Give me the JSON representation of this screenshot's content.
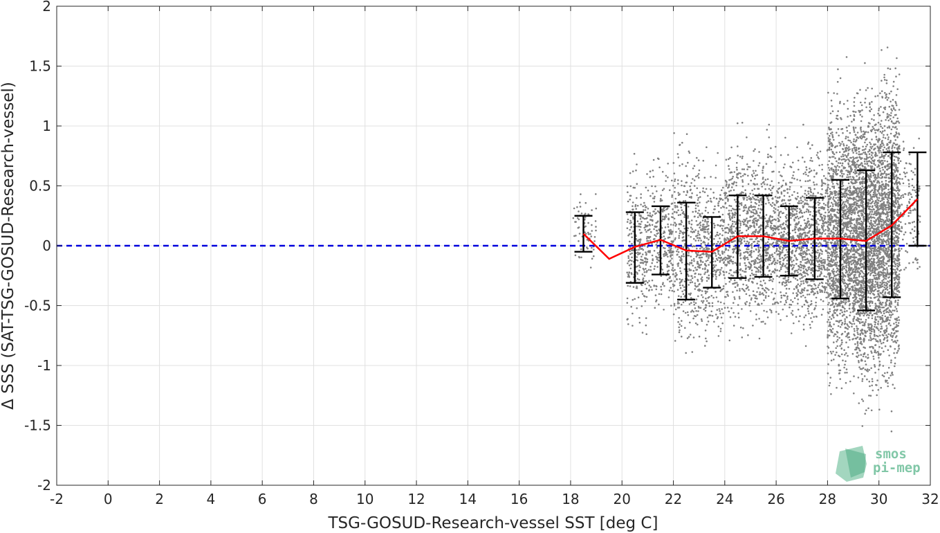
{
  "chart_data": {
    "type": "scatter",
    "title": "",
    "xlabel": "TSG-GOSUD-Research-vessel SST [deg C]",
    "ylabel": "Δ SSS (SAT-TSG-GOSUD-Research-vessel)",
    "xlim": [
      -2,
      32
    ],
    "ylim": [
      -2,
      2
    ],
    "xticks": [
      "-2",
      "0",
      "2",
      "4",
      "6",
      "8",
      "10",
      "12",
      "14",
      "16",
      "18",
      "20",
      "22",
      "24",
      "26",
      "28",
      "30",
      "32"
    ],
    "yticks": [
      "-2",
      "-1.5",
      "-1",
      "-0.5",
      "0",
      "0.5",
      "1",
      "1.5",
      "2"
    ],
    "xtick_values": [
      -2,
      0,
      2,
      4,
      6,
      8,
      10,
      12,
      14,
      16,
      18,
      20,
      22,
      24,
      26,
      28,
      30,
      32
    ],
    "ytick_values": [
      -2,
      -1.5,
      -1,
      -0.5,
      0,
      0.5,
      1,
      1.5,
      2
    ],
    "grid": true,
    "colors": {
      "scatter": "#808080",
      "mean_line": "#ff0000",
      "zero_line": "#0000dd",
      "errorbars": "#000000",
      "axes": "#262626",
      "grid": "#e0e0e0"
    },
    "scatter_clusters": [
      {
        "x": [
          18.1,
          19.0
        ],
        "center": 0.12,
        "spread": 0.15,
        "count": 70
      },
      {
        "x": [
          20.2,
          21.0
        ],
        "center": 0.0,
        "spread": 0.32,
        "count": 260
      },
      {
        "x": [
          21.0,
          22.0
        ],
        "center": 0.05,
        "spread": 0.3,
        "count": 300
      },
      {
        "x": [
          22.0,
          23.0
        ],
        "center": 0.0,
        "spread": 0.42,
        "count": 380
      },
      {
        "x": [
          23.0,
          24.0
        ],
        "center": -0.05,
        "spread": 0.33,
        "count": 380
      },
      {
        "x": [
          24.0,
          25.0
        ],
        "center": 0.08,
        "spread": 0.37,
        "count": 480
      },
      {
        "x": [
          25.0,
          26.0
        ],
        "center": 0.08,
        "spread": 0.36,
        "count": 520
      },
      {
        "x": [
          26.0,
          27.0
        ],
        "center": 0.04,
        "spread": 0.32,
        "count": 520
      },
      {
        "x": [
          27.0,
          28.0
        ],
        "center": 0.06,
        "spread": 0.36,
        "count": 600
      },
      {
        "x": [
          28.0,
          29.0
        ],
        "center": 0.06,
        "spread": 0.55,
        "count": 1400
      },
      {
        "x": [
          29.0,
          30.0
        ],
        "center": 0.05,
        "spread": 0.6,
        "count": 1800
      },
      {
        "x": [
          30.0,
          30.8
        ],
        "center": 0.15,
        "spread": 0.62,
        "count": 1300
      },
      {
        "x": [
          30.8,
          31.6
        ],
        "center": 0.3,
        "spread": 0.3,
        "count": 140
      }
    ],
    "mean_line": {
      "x": [
        18.5,
        19.5,
        20.5,
        21.5,
        22.5,
        23.5,
        24.5,
        25.5,
        26.5,
        27.5,
        28.5,
        29.5,
        30.5,
        31.5
      ],
      "y": [
        0.1,
        -0.11,
        -0.01,
        0.05,
        -0.04,
        -0.05,
        0.08,
        0.08,
        0.04,
        0.06,
        0.06,
        0.04,
        0.17,
        0.39
      ]
    },
    "errorbars": [
      {
        "x": 18.5,
        "low": -0.05,
        "high": 0.25
      },
      {
        "x": 20.5,
        "low": -0.31,
        "high": 0.28
      },
      {
        "x": 21.5,
        "low": -0.24,
        "high": 0.33
      },
      {
        "x": 22.5,
        "low": -0.45,
        "high": 0.36
      },
      {
        "x": 23.5,
        "low": -0.35,
        "high": 0.24
      },
      {
        "x": 24.5,
        "low": -0.27,
        "high": 0.42
      },
      {
        "x": 25.5,
        "low": -0.26,
        "high": 0.42
      },
      {
        "x": 26.5,
        "low": -0.25,
        "high": 0.33
      },
      {
        "x": 27.5,
        "low": -0.28,
        "high": 0.4
      },
      {
        "x": 28.5,
        "low": -0.44,
        "high": 0.55
      },
      {
        "x": 29.5,
        "low": -0.54,
        "high": 0.63
      },
      {
        "x": 30.5,
        "low": -0.43,
        "high": 0.78
      },
      {
        "x": 31.5,
        "low": 0.0,
        "high": 0.78
      }
    ],
    "reference_line": {
      "y": 0,
      "style": "dashed"
    },
    "watermark": {
      "line1": "smos",
      "line2": "pi-mep"
    }
  }
}
